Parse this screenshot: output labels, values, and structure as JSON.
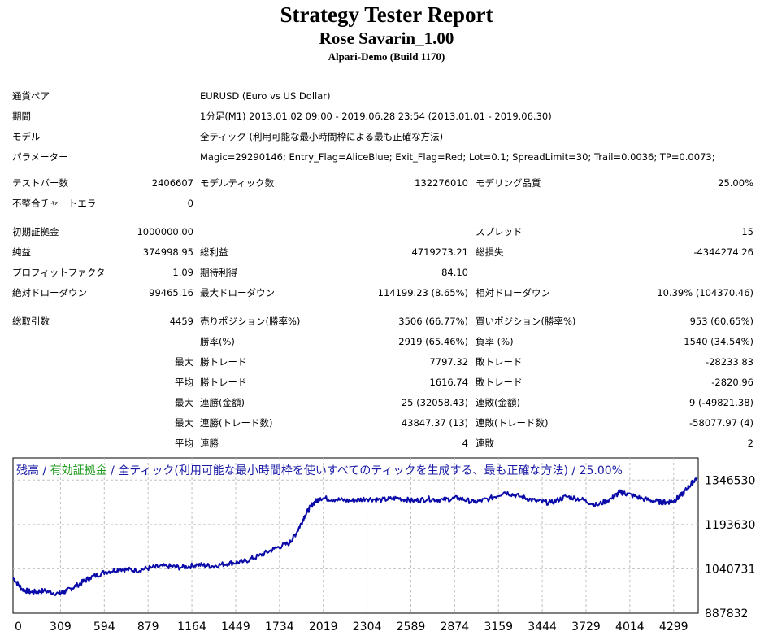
{
  "report": {
    "title": "Strategy Tester Report",
    "ea_name": "Rose Savarin_1.00",
    "server": "Alpari-Demo (Build 1170)"
  },
  "info": {
    "symbol_label": "通貨ペア",
    "symbol_value": "EURUSD (Euro vs US Dollar)",
    "period_label": "期間",
    "period_value": "1分足(M1) 2013.01.02 09:00 - 2019.06.28 23:54 (2013.01.01 - 2019.06.30)",
    "model_label": "モデル",
    "model_value": "全ティック (利用可能な最小時間枠による最も正確な方法)",
    "params_label": "パラメーター",
    "params_value": "Magic=29290146; Entry_Flag=AliceBlue; Exit_Flag=Red; Lot=0.1; SpreadLimit=30; Trail=0.0036; TP=0.0073;"
  },
  "stats": {
    "bars_label": "テストバー数",
    "bars_value": "2406607",
    "ticks_label": "モデルティック数",
    "ticks_value": "132276010",
    "quality_label": "モデリング品質",
    "quality_value": "25.00%",
    "mismatch_label": "不整合チャートエラー",
    "mismatch_value": "0",
    "deposit_label": "初期証拠金",
    "deposit_value": "1000000.00",
    "spread_label": "スプレッド",
    "spread_value": "15",
    "net_label": "純益",
    "net_value": "374998.95",
    "gross_profit_label": "総利益",
    "gross_profit_value": "4719273.21",
    "gross_loss_label": "総損失",
    "gross_loss_value": "-4344274.26",
    "pf_label": "プロフィットファクタ",
    "pf_value": "1.09",
    "expected_label": "期待利得",
    "expected_value": "84.10",
    "abs_dd_label": "絶対ドローダウン",
    "abs_dd_value": "99465.16",
    "max_dd_label": "最大ドローダウン",
    "max_dd_value": "114199.23 (8.65%)",
    "rel_dd_label": "相対ドローダウン",
    "rel_dd_value": "10.39% (104370.46)",
    "trades_label": "総取引数",
    "trades_value": "4459",
    "short_label": "売りポジション(勝率%)",
    "short_value": "3506 (66.77%)",
    "long_label": "買いポジション(勝率%)",
    "long_value": "953 (60.65%)",
    "winrate_label": "勝率(%)",
    "winrate_value": "2919 (65.46%)",
    "lossrate_label": "負率 (%)",
    "lossrate_value": "1540 (34.54%)",
    "max_prefix": "最大",
    "avg_prefix": "平均",
    "largest_win_label": "勝トレード",
    "largest_win_value": "7797.32",
    "largest_loss_label": "敗トレード",
    "largest_loss_value": "-28233.83",
    "avg_win_label": "勝トレード",
    "avg_win_value": "1616.74",
    "avg_loss_label": "敗トレード",
    "avg_loss_value": "-2820.96",
    "cons_wins_money_label": "連勝(金額)",
    "cons_wins_money_value": "25 (32058.43)",
    "cons_losses_money_label": "連敗(金額)",
    "cons_losses_money_value": "9 (-49821.38)",
    "cons_profit_label": "連勝(トレード数)",
    "cons_profit_value": "43847.37 (13)",
    "cons_loss_label": "連敗(トレード数)",
    "cons_loss_value": "-58077.97 (4)",
    "avg_cons_wins_label": "連勝",
    "avg_cons_wins_value": "4",
    "avg_cons_losses_label": "連敗",
    "avg_cons_losses_value": "2"
  },
  "chart_data": {
    "type": "line",
    "legend": {
      "balance": "残高",
      "sep1": " / ",
      "equity": "有効証拠金",
      "rest": " / 全ティック(利用可能な最小時間枠を使いすべてのティックを生成する、最も正確な方法) / 25.00%"
    },
    "colors": {
      "balance": "#1a1aa6",
      "equity": "#1c9a1c",
      "line": "#0a0aa8",
      "grid": "#c0c0c0"
    },
    "x_ticks": [
      "0",
      "309",
      "594",
      "879",
      "1164",
      "1449",
      "1734",
      "2019",
      "2304",
      "2589",
      "2874",
      "3159",
      "3444",
      "3729",
      "4014",
      "4299"
    ],
    "y_ticks": [
      "1346530",
      "1193630",
      "1040731",
      "887832"
    ],
    "xlim": [
      0,
      4459
    ],
    "ylim": [
      887832,
      1422979
    ],
    "series": [
      {
        "values": [
          [
            0,
            1010000
          ],
          [
            60,
            970000
          ],
          [
            120,
            960000
          ],
          [
            200,
            965000
          ],
          [
            300,
            955000
          ],
          [
            350,
            965000
          ],
          [
            420,
            985000
          ],
          [
            500,
            1010000
          ],
          [
            600,
            1030000
          ],
          [
            700,
            1040000
          ],
          [
            800,
            1035000
          ],
          [
            900,
            1045000
          ],
          [
            1000,
            1050000
          ],
          [
            1100,
            1045000
          ],
          [
            1200,
            1055000
          ],
          [
            1300,
            1050000
          ],
          [
            1400,
            1060000
          ],
          [
            1500,
            1065000
          ],
          [
            1600,
            1085000
          ],
          [
            1700,
            1110000
          ],
          [
            1800,
            1130000
          ],
          [
            1850,
            1170000
          ],
          [
            1900,
            1225000
          ],
          [
            1950,
            1265000
          ],
          [
            2000,
            1285000
          ],
          [
            2100,
            1280000
          ],
          [
            2200,
            1275000
          ],
          [
            2300,
            1283000
          ],
          [
            2400,
            1278000
          ],
          [
            2500,
            1285000
          ],
          [
            2600,
            1275000
          ],
          [
            2700,
            1282000
          ],
          [
            2800,
            1278000
          ],
          [
            2900,
            1285000
          ],
          [
            3000,
            1270000
          ],
          [
            3100,
            1282000
          ],
          [
            3200,
            1305000
          ],
          [
            3300,
            1290000
          ],
          [
            3400,
            1275000
          ],
          [
            3500,
            1268000
          ],
          [
            3600,
            1290000
          ],
          [
            3700,
            1280000
          ],
          [
            3800,
            1260000
          ],
          [
            3900,
            1285000
          ],
          [
            3950,
            1305000
          ],
          [
            4000,
            1298000
          ],
          [
            4100,
            1282000
          ],
          [
            4200,
            1272000
          ],
          [
            4250,
            1270000
          ],
          [
            4300,
            1275000
          ],
          [
            4350,
            1295000
          ],
          [
            4400,
            1325000
          ],
          [
            4450,
            1355000
          ]
        ]
      }
    ]
  }
}
